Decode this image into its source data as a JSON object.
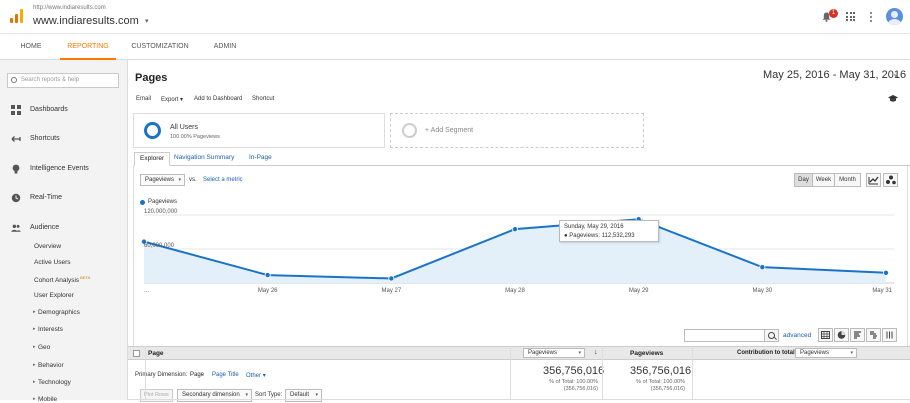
{
  "topbar": {
    "site_url": "http://www.indiaresults.com",
    "site_name": "www.indiaresults.com",
    "notification_count": "1",
    "logo_colors": [
      "#f9ab00",
      "#e37400",
      "#e37400"
    ]
  },
  "nav": {
    "tabs": [
      "HOME",
      "REPORTING",
      "CUSTOMIZATION",
      "ADMIN"
    ],
    "active": "REPORTING",
    "accent": "#f57c00"
  },
  "sidebar": {
    "search_placeholder": "Search reports & help",
    "items": [
      {
        "label": "Dashboards",
        "icon": "grid-icon"
      },
      {
        "label": "Shortcuts",
        "icon": "shortcut-arrow-icon"
      },
      {
        "label": "Intelligence Events",
        "icon": "lightbulb-icon"
      },
      {
        "label": "Real-Time",
        "icon": "clock-icon"
      },
      {
        "label": "Audience",
        "icon": "people-icon"
      }
    ],
    "audience_items": [
      "Overview",
      "Active Users",
      "Cohort Analysis",
      "User Explorer"
    ],
    "beta_label": "BETA",
    "audience_groups": [
      "Demographics",
      "Interests",
      "Geo",
      "Behavior",
      "Technology",
      "Mobile"
    ]
  },
  "header": {
    "title": "Pages",
    "date_range": "May 25, 2016 - May 31, 2016",
    "toolbar": [
      "Email",
      "Export",
      "Add to Dashboard",
      "Shortcut"
    ],
    "export_caret": "▾"
  },
  "segments": {
    "primary_name": "All Users",
    "primary_sub": "100.00% Pageviews",
    "add_label": "+ Add Segment"
  },
  "report_tabs": [
    "Explorer",
    "Navigation Summary",
    "In-Page"
  ],
  "chart_controls": {
    "metric": "Pageviews",
    "vs": "vs.",
    "select_metric": "Select a metric",
    "granularity": [
      "Day",
      "Week",
      "Month"
    ],
    "active_granularity": "Day"
  },
  "chart_data": {
    "type": "area",
    "series": [
      {
        "name": "Pageviews",
        "color": "#1a73c8",
        "values": [
          73000000,
          14000000,
          8000000,
          95000000,
          112532293,
          28000000,
          18000000
        ]
      }
    ],
    "x": [
      "May 25",
      "May 26",
      "May 27",
      "May 28",
      "May 29",
      "May 30",
      "May 31"
    ],
    "x_tick_labels": [
      "...",
      "May 26",
      "May 27",
      "May 28",
      "May 29",
      "May 30",
      "May 31"
    ],
    "y_ticks": [
      "60,000,000",
      "120,000,000"
    ],
    "ylim": [
      0,
      120000000
    ],
    "tooltip": {
      "date": "Sunday, May 29, 2016",
      "label": "Pageviews: 112,532,293"
    },
    "grid": true,
    "legend": "top-left"
  },
  "dimension": {
    "label": "Primary Dimension:",
    "options": [
      "Page",
      "Page Title",
      "Other"
    ],
    "other_caret": "▾"
  },
  "controls": {
    "plot_rows": "Plot Rows",
    "secondary_dimension": "Secondary dimension",
    "sort_type_label": "Sort Type:",
    "sort_type_value": "Default",
    "advanced": "advanced"
  },
  "table": {
    "columns": {
      "page": "Page",
      "metric_select": "Pageviews",
      "pageviews": "Pageviews",
      "contribution_label": "Contribution to total:",
      "contribution_select": "Pageviews"
    },
    "totals": [
      {
        "value": "356,756,016",
        "pct": "% of Total: 100.00%",
        "of": "(356,756,016)"
      },
      {
        "value": "356,756,016",
        "pct": "% of Total: 100.00%",
        "of": "(356,756,016)"
      }
    ]
  }
}
